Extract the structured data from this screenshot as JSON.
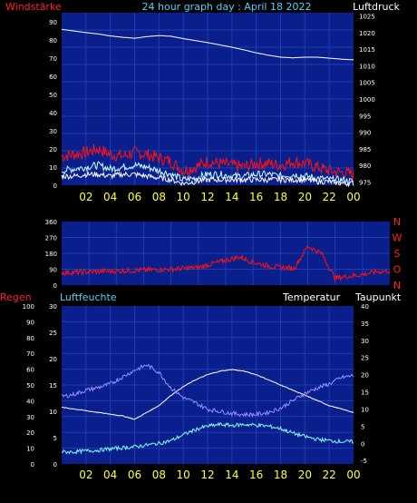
{
  "header": {
    "title": "24 hour graph day : April 18 2022",
    "left_label": "Windstärke",
    "right_label": "Luftdruck"
  },
  "colors": {
    "background": "#000000",
    "plot_bg": "#0a1f8c",
    "grid": "#1e3cb4",
    "title": "#4fd2ff",
    "red_label": "#ff2020",
    "white_label": "#ffffff",
    "hour_label": "#ffff40",
    "wind_line": "#ff1010",
    "pressure_line": "#ffffff",
    "gust_line": "#c8ffff",
    "temp_line": "#ffffff",
    "humidity_line": "#9090ff",
    "dew_line": "#80ffff",
    "tick_label": "#ffffff"
  },
  "chart_data": [
    {
      "id": "wind-pressure",
      "type": "line",
      "left_axis": {
        "label": "Windstärke",
        "ticks": [
          "0",
          "10",
          "20",
          "30",
          "40",
          "50",
          "60",
          "70",
          "80",
          "90"
        ],
        "range": [
          0,
          95
        ]
      },
      "right_axis": {
        "label": "Luftdruck",
        "ticks": [
          "975",
          "980",
          "985",
          "990",
          "995",
          "1000",
          "1005",
          "1010",
          "1015",
          "1020",
          "1025"
        ],
        "range": [
          974,
          1026
        ]
      },
      "x_ticks": [
        "02",
        "04",
        "06",
        "08",
        "10",
        "12",
        "14",
        "16",
        "18",
        "20",
        "22",
        "00"
      ],
      "series": [
        {
          "axis": "right",
          "values": [
            1021,
            1020.5,
            1020,
            1019.6,
            1019,
            1018.6,
            1018.3,
            1018.8,
            1019.1,
            1018.9,
            1018.2,
            1017.6,
            1017,
            1016.3,
            1015.6,
            1014.8,
            1013.9,
            1013.2,
            1012.6,
            1012.4,
            1012.6,
            1012.6,
            1012.3,
            1012,
            1011.8
          ]
        },
        {
          "axis": "left",
          "values": [
            16,
            17,
            18,
            20,
            17,
            16,
            18,
            17,
            15,
            13,
            8,
            10,
            13,
            12,
            11,
            10,
            12,
            12,
            11,
            13,
            12,
            10,
            8,
            7,
            6
          ]
        },
        {
          "axis": "left",
          "values": [
            8,
            9,
            10,
            11,
            9,
            10,
            11,
            10,
            8,
            6,
            3,
            4,
            6,
            6,
            5,
            5,
            6,
            6,
            5,
            6,
            5,
            4,
            3,
            3,
            2
          ]
        },
        {
          "axis": "left",
          "values": [
            5,
            5,
            6,
            6,
            5,
            6,
            6,
            5,
            4,
            3,
            1,
            2,
            3,
            3,
            3,
            3,
            3,
            3,
            3,
            3,
            3,
            2,
            2,
            1,
            1
          ]
        }
      ]
    },
    {
      "id": "wind-direction",
      "type": "line",
      "left_axis": {
        "ticks": [
          "0",
          "90",
          "180",
          "270",
          "360"
        ],
        "range": [
          0,
          360
        ]
      },
      "right_axis": {
        "ticks": [
          "N",
          "O",
          "S",
          "W",
          "N"
        ]
      },
      "series": [
        {
          "values": [
            70,
            72,
            75,
            78,
            80,
            82,
            85,
            88,
            90,
            95,
            100,
            120,
            140,
            160,
            130,
            110,
            100,
            95,
            220,
            180,
            40,
            50,
            60,
            75,
            80
          ]
        }
      ]
    },
    {
      "id": "climate",
      "type": "line",
      "legend": [
        "Regen",
        "Luftfeuchte",
        "Temperatur",
        "Taupunkt"
      ],
      "rain_axis": {
        "ticks": [
          "0",
          "10",
          "20",
          "30",
          "40",
          "50",
          "60",
          "70",
          "80",
          "90",
          "100"
        ],
        "range": [
          0,
          100
        ]
      },
      "humidity_axis": {
        "ticks": [
          "0",
          "5",
          "10",
          "15",
          "20",
          "25",
          "30"
        ],
        "range": [
          0,
          30
        ]
      },
      "temp_axis": {
        "ticks": [
          "-5",
          "0",
          "5",
          "10",
          "15",
          "20",
          "25",
          "30",
          "35",
          "40"
        ],
        "range": [
          -6,
          40
        ]
      },
      "x_ticks": [
        "02",
        "04",
        "06",
        "08",
        "10",
        "12",
        "14",
        "16",
        "18",
        "20",
        "22",
        "00"
      ],
      "series": [
        {
          "name": "Temperatur",
          "values": [
            10.5,
            10,
            9.5,
            9,
            8.5,
            8,
            7,
            9,
            11,
            14,
            16.5,
            18.5,
            20,
            21,
            21.5,
            21,
            20,
            18.5,
            17,
            15.5,
            14,
            12.5,
            11,
            10,
            9
          ]
        },
        {
          "name": "Luftfeuchte",
          "values": [
            12.8,
            13.2,
            14,
            14.5,
            15.2,
            16.5,
            17.8,
            18.8,
            17.4,
            14.4,
            12.6,
            11.6,
            10.4,
            10,
            9.6,
            9.4,
            9.4,
            9.8,
            10.6,
            12,
            13.4,
            14.4,
            15.2,
            16.4,
            16.8
          ]
        },
        {
          "name": "Taupunkt",
          "values": [
            -2.5,
            -2.5,
            -2.2,
            -2,
            -1.6,
            -1.3,
            -1,
            -0.5,
            0,
            0.8,
            2.5,
            4,
            5,
            5.5,
            5.2,
            5.5,
            5.3,
            5,
            4.3,
            3,
            2,
            1.2,
            0.8,
            0.5,
            0.5
          ]
        }
      ]
    }
  ]
}
